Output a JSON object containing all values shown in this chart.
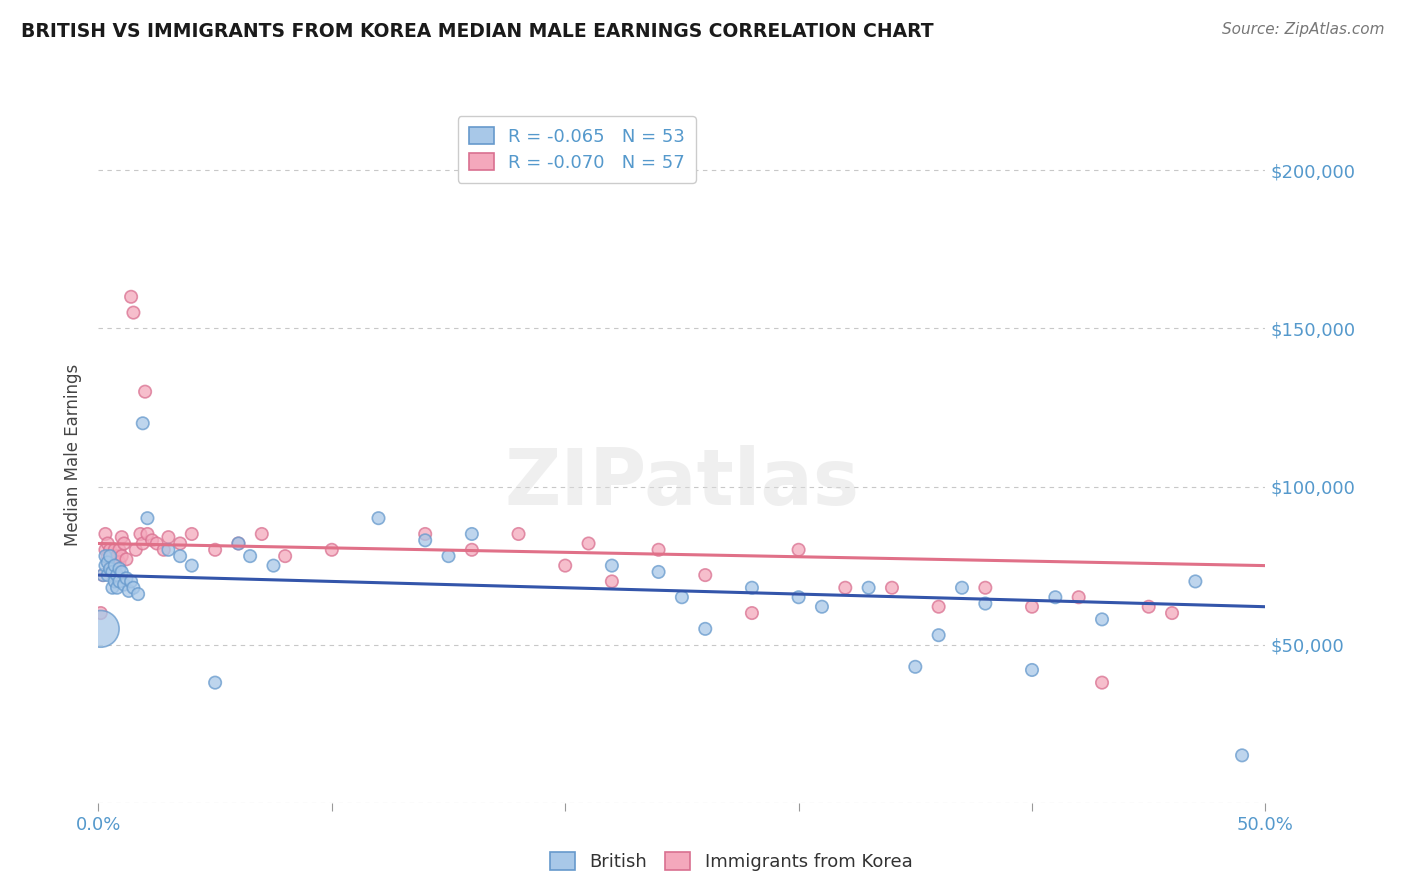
{
  "title": "BRITISH VS IMMIGRANTS FROM KOREA MEDIAN MALE EARNINGS CORRELATION CHART",
  "source": "Source: ZipAtlas.com",
  "ylabel": "Median Male Earnings",
  "xlim": [
    0.0,
    0.5
  ],
  "ylim": [
    0,
    220000
  ],
  "yticks": [
    0,
    50000,
    100000,
    150000,
    200000
  ],
  "ytick_labels": [
    "",
    "$50,000",
    "$100,000",
    "$150,000",
    "$200,000"
  ],
  "xticks": [
    0.0,
    0.1,
    0.2,
    0.3,
    0.4,
    0.5
  ],
  "xtick_labels": [
    "0.0%",
    "",
    "",
    "",
    "",
    "50.0%"
  ],
  "background_color": "#ffffff",
  "grid_color": "#c8c8c8",
  "british_color": "#a8c8e8",
  "british_edge_color": "#6699cc",
  "korea_color": "#f4a8bc",
  "korea_edge_color": "#d97090",
  "british_line_color": "#3355aa",
  "korea_line_color": "#e07088",
  "legend_R_british": "-0.065",
  "legend_N_british": "53",
  "legend_R_korea": "-0.070",
  "legend_N_korea": "57",
  "label_color": "#5599cc",
  "watermark": "ZIPatlas",
  "british_x": [
    0.001,
    0.002,
    0.003,
    0.003,
    0.004,
    0.004,
    0.005,
    0.005,
    0.006,
    0.006,
    0.007,
    0.007,
    0.008,
    0.008,
    0.009,
    0.009,
    0.01,
    0.011,
    0.012,
    0.013,
    0.014,
    0.015,
    0.017,
    0.019,
    0.021,
    0.03,
    0.035,
    0.04,
    0.05,
    0.06,
    0.065,
    0.075,
    0.12,
    0.14,
    0.15,
    0.16,
    0.22,
    0.24,
    0.25,
    0.26,
    0.28,
    0.3,
    0.31,
    0.33,
    0.35,
    0.36,
    0.37,
    0.38,
    0.4,
    0.41,
    0.43,
    0.47,
    0.49
  ],
  "british_y": [
    55000,
    72000,
    75000,
    78000,
    72000,
    76000,
    74000,
    78000,
    68000,
    73000,
    70000,
    75000,
    72000,
    68000,
    74000,
    70000,
    73000,
    69000,
    71000,
    67000,
    70000,
    68000,
    66000,
    120000,
    90000,
    80000,
    78000,
    75000,
    38000,
    82000,
    78000,
    75000,
    90000,
    83000,
    78000,
    85000,
    75000,
    73000,
    65000,
    55000,
    68000,
    65000,
    62000,
    68000,
    43000,
    53000,
    68000,
    63000,
    42000,
    65000,
    58000,
    70000,
    15000
  ],
  "british_size": [
    700,
    80,
    80,
    80,
    80,
    80,
    80,
    80,
    80,
    80,
    80,
    80,
    80,
    80,
    80,
    80,
    80,
    80,
    80,
    80,
    80,
    80,
    80,
    80,
    80,
    80,
    80,
    80,
    80,
    80,
    80,
    80,
    80,
    80,
    80,
    80,
    80,
    80,
    80,
    80,
    80,
    80,
    80,
    80,
    80,
    80,
    80,
    80,
    80,
    80,
    80,
    80,
    80
  ],
  "korea_x": [
    0.001,
    0.002,
    0.003,
    0.003,
    0.004,
    0.004,
    0.005,
    0.005,
    0.006,
    0.006,
    0.007,
    0.007,
    0.008,
    0.008,
    0.009,
    0.009,
    0.01,
    0.01,
    0.011,
    0.012,
    0.014,
    0.015,
    0.016,
    0.018,
    0.019,
    0.02,
    0.021,
    0.023,
    0.025,
    0.028,
    0.03,
    0.035,
    0.04,
    0.05,
    0.06,
    0.07,
    0.08,
    0.1,
    0.14,
    0.16,
    0.18,
    0.2,
    0.21,
    0.22,
    0.24,
    0.26,
    0.28,
    0.3,
    0.32,
    0.34,
    0.36,
    0.38,
    0.4,
    0.42,
    0.43,
    0.45,
    0.46
  ],
  "korea_y": [
    60000,
    72000,
    80000,
    85000,
    78000,
    82000,
    76000,
    80000,
    74000,
    78000,
    80000,
    75000,
    72000,
    78000,
    80000,
    76000,
    84000,
    78000,
    82000,
    77000,
    160000,
    155000,
    80000,
    85000,
    82000,
    130000,
    85000,
    83000,
    82000,
    80000,
    84000,
    82000,
    85000,
    80000,
    82000,
    85000,
    78000,
    80000,
    85000,
    80000,
    85000,
    75000,
    82000,
    70000,
    80000,
    72000,
    60000,
    80000,
    68000,
    68000,
    62000,
    68000,
    62000,
    65000,
    38000,
    62000,
    60000
  ],
  "korea_size": [
    80,
    80,
    80,
    80,
    80,
    80,
    80,
    80,
    80,
    80,
    80,
    80,
    80,
    80,
    80,
    80,
    80,
    80,
    80,
    80,
    80,
    80,
    80,
    80,
    80,
    80,
    80,
    80,
    80,
    80,
    80,
    80,
    80,
    80,
    80,
    80,
    80,
    80,
    80,
    80,
    80,
    80,
    80,
    80,
    80,
    80,
    80,
    80,
    80,
    80,
    80,
    80,
    80,
    80,
    80,
    80,
    80
  ],
  "british_trend_x": [
    0.0,
    0.5
  ],
  "british_trend_y": [
    72000,
    62000
  ],
  "korea_trend_x": [
    0.0,
    0.5
  ],
  "korea_trend_y": [
    82000,
    75000
  ]
}
